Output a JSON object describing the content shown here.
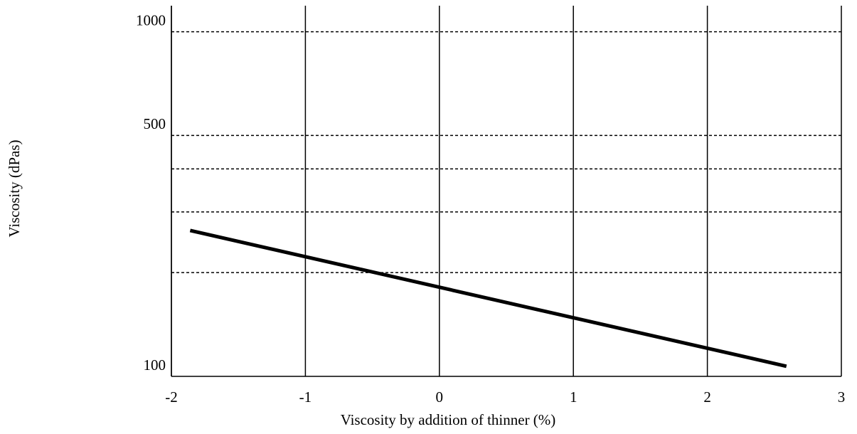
{
  "chart_data": {
    "type": "line",
    "x_label": "Viscosity by addition of thinner (%)",
    "y_label": "Viscosity (dPas)",
    "y_log_scale": true,
    "xlim": [
      -2,
      3
    ],
    "xticks": [
      -2,
      -1,
      0,
      1,
      2,
      3
    ],
    "ylim": [
      100,
      1190
    ],
    "yticks": [
      100,
      500,
      1000
    ],
    "minor_yticks": [
      200,
      300,
      400
    ],
    "grid": true,
    "series": [
      {
        "color": "#000000",
        "x": [
          -1.86,
          2.59
        ],
        "values": [
          265,
          107
        ]
      }
    ]
  }
}
